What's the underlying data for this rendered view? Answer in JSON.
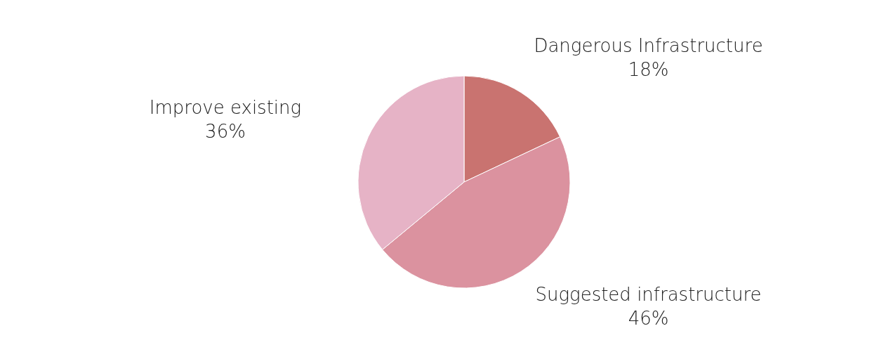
{
  "chart_data": {
    "type": "pie",
    "categories": [
      "Dangerous Infrastructure",
      "Suggested infrastructure",
      "Improve existing"
    ],
    "values": [
      18,
      46,
      36
    ],
    "value_labels": [
      "18%",
      "46%",
      "36%"
    ],
    "colors": [
      "#c97370",
      "#db929f",
      "#e6b3c6"
    ]
  }
}
